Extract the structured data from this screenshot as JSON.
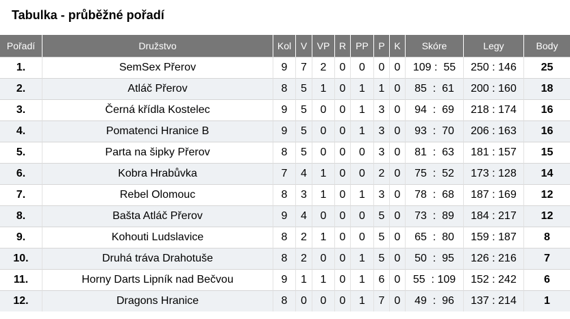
{
  "page": {
    "title": "Tabulka - průběžné pořadí"
  },
  "table": {
    "headers": [
      "Pořadí",
      "Družstvo",
      "Kol",
      "V",
      "VP",
      "R",
      "PP",
      "P",
      "K",
      "Skóre",
      "Legy",
      "Body"
    ],
    "rows": [
      {
        "rank": "1.",
        "team": "SemSex Přerov",
        "kol": "9",
        "v": "7",
        "vp": "2",
        "r": "0",
        "pp": "0",
        "p": "0",
        "k": "0",
        "score": "109 :  55",
        "legs": "250 : 146",
        "points": "25"
      },
      {
        "rank": "2.",
        "team": "Atláč Přerov",
        "kol": "8",
        "v": "5",
        "vp": "1",
        "r": "0",
        "pp": "1",
        "p": "1",
        "k": "0",
        "score": "85  :  61",
        "legs": "200 : 160",
        "points": "18"
      },
      {
        "rank": "3.",
        "team": "Černá křídla Kostelec",
        "kol": "9",
        "v": "5",
        "vp": "0",
        "r": "0",
        "pp": "1",
        "p": "3",
        "k": "0",
        "score": "94  :  69",
        "legs": "218 : 174",
        "points": "16"
      },
      {
        "rank": "4.",
        "team": "Pomatenci Hranice B",
        "kol": "9",
        "v": "5",
        "vp": "0",
        "r": "0",
        "pp": "1",
        "p": "3",
        "k": "0",
        "score": "93  :  70",
        "legs": "206 : 163",
        "points": "16"
      },
      {
        "rank": "5.",
        "team": "Parta na šipky Přerov",
        "kol": "8",
        "v": "5",
        "vp": "0",
        "r": "0",
        "pp": "0",
        "p": "3",
        "k": "0",
        "score": "81  :  63",
        "legs": "181 : 157",
        "points": "15"
      },
      {
        "rank": "6.",
        "team": "Kobra Hrabůvka",
        "kol": "7",
        "v": "4",
        "vp": "1",
        "r": "0",
        "pp": "0",
        "p": "2",
        "k": "0",
        "score": "75  :  52",
        "legs": "173 : 128",
        "points": "14"
      },
      {
        "rank": "7.",
        "team": "Rebel Olomouc",
        "kol": "8",
        "v": "3",
        "vp": "1",
        "r": "0",
        "pp": "1",
        "p": "3",
        "k": "0",
        "score": "78  :  68",
        "legs": "187 : 169",
        "points": "12"
      },
      {
        "rank": "8.",
        "team": "Bašta Atláč Přerov",
        "kol": "9",
        "v": "4",
        "vp": "0",
        "r": "0",
        "pp": "0",
        "p": "5",
        "k": "0",
        "score": "73  :  89",
        "legs": "184 : 217",
        "points": "12"
      },
      {
        "rank": "9.",
        "team": "Kohouti Ludslavice",
        "kol": "8",
        "v": "2",
        "vp": "1",
        "r": "0",
        "pp": "0",
        "p": "5",
        "k": "0",
        "score": "65  :  80",
        "legs": "159 : 187",
        "points": "8"
      },
      {
        "rank": "10.",
        "team": "Druhá tráva Drahotuše",
        "kol": "8",
        "v": "2",
        "vp": "0",
        "r": "0",
        "pp": "1",
        "p": "5",
        "k": "0",
        "score": "50  :  95",
        "legs": "126 : 216",
        "points": "7"
      },
      {
        "rank": "11.",
        "team": "Horny Darts Lipník nad Bečvou",
        "kol": "9",
        "v": "1",
        "vp": "1",
        "r": "0",
        "pp": "1",
        "p": "6",
        "k": "0",
        "score": "55  : 109",
        "legs": "152 : 242",
        "points": "6"
      },
      {
        "rank": "12.",
        "team": "Dragons Hranice",
        "kol": "8",
        "v": "0",
        "vp": "0",
        "r": "0",
        "pp": "1",
        "p": "7",
        "k": "0",
        "score": "49  :  96",
        "legs": "137 : 214",
        "points": "1"
      }
    ]
  }
}
